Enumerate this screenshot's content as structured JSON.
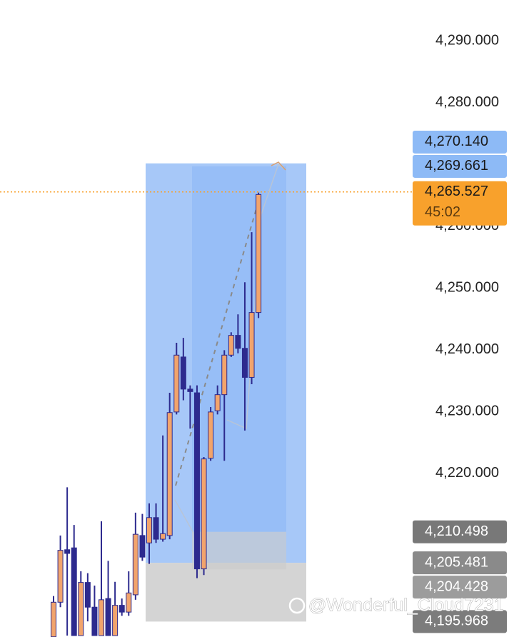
{
  "chart_data": {
    "type": "candlestick",
    "open": [
      4193.5,
      4199.1,
      4207.6,
      4207.9,
      4193.7,
      4202.3,
      4198.3,
      4193.7,
      4199.7,
      4193.7,
      4198.6,
      4197.5,
      4200.3,
      4209.9,
      4208.7,
      4212.8,
      4209.3,
      4209.9,
      4229.9,
      4238.8,
      4233.6,
      4233.0,
      4204.5,
      4222.4,
      4230.1,
      4232.7,
      4239.1,
      4242.3,
      4240.2,
      4235.5,
      4246.0
    ],
    "high": [
      4200.1,
      4209.9,
      4217.7,
      4211.6,
      4204.1,
      4203.8,
      4201.8,
      4212.2,
      4205.8,
      4202.4,
      4199.7,
      4204.1,
      4213.6,
      4213.4,
      4215.1,
      4215.1,
      4226.1,
      4233.0,
      4241.1,
      4241.9,
      4234.2,
      4234.2,
      4222.6,
      4230.7,
      4234.2,
      4239.9,
      4242.8,
      4245.7,
      4250.9,
      4259.0,
      4265.4
    ],
    "low": [
      4193.5,
      4198.3,
      4193.7,
      4193.7,
      4193.7,
      4196.0,
      4193.7,
      4193.7,
      4193.7,
      4193.7,
      4196.9,
      4196.9,
      4199.5,
      4205.8,
      4205.3,
      4208.7,
      4208.9,
      4209.3,
      4229.5,
      4231.8,
      4227.2,
      4203.0,
      4203.5,
      4222.0,
      4229.5,
      4222.0,
      4238.8,
      4239.4,
      4226.9,
      4234.4,
      4245.1
    ],
    "close": [
      4199.1,
      4207.5,
      4207.0,
      4193.7,
      4202.3,
      4198.3,
      4193.7,
      4199.5,
      4193.7,
      4198.6,
      4197.5,
      4200.6,
      4210.1,
      4206.4,
      4212.8,
      4209.3,
      4210.2,
      4229.8,
      4239.1,
      4233.6,
      4233.2,
      4204.5,
      4222.3,
      4229.9,
      4232.7,
      4239.1,
      4242.3,
      4240.2,
      4235.5,
      4246.0,
      4265.1
    ],
    "up_color": "#f2a46c",
    "down_color": "#2d2a8e",
    "ylim": [
      4193.47,
      4296.59
    ],
    "yticks": [
      {
        "value": 4290,
        "label": "4,290.000"
      },
      {
        "value": 4280,
        "label": "4,280.000"
      },
      {
        "value": 4260,
        "label": "4,260.000"
      },
      {
        "value": 4250,
        "label": "4,250.000"
      },
      {
        "value": 4240,
        "label": "4,240.000"
      },
      {
        "value": 4230,
        "label": "4,230.000"
      },
      {
        "value": 4220,
        "label": "4,220.000"
      }
    ],
    "price_labels": [
      {
        "value": 4270.14,
        "label": "4,270.140",
        "color": "#8dbaf6",
        "text_color": "#1a1a1a"
      },
      {
        "value": 4269.661,
        "label": "4,269.661",
        "color": "#8dbaf6",
        "text_color": "#1a1a1a"
      },
      {
        "value": 4265.527,
        "label": "4,265.527",
        "countdown": "45:02",
        "color": "#f8a12c",
        "text_color": "#1a1a1a"
      },
      {
        "value": 4210.498,
        "label": "4,210.498",
        "color": "#787878",
        "text_color": "#ffffff"
      },
      {
        "value": 4205.481,
        "label": "4,205.481",
        "color": "#8a8a8a",
        "text_color": "#ffffff"
      },
      {
        "value": 4204.428,
        "label": "4,204.428",
        "color": "#9c9c9c",
        "text_color": "#ffffff"
      },
      {
        "value": 4195.968,
        "label": "4,195.968",
        "color": "#7c7c7c",
        "text_color": "#ffffff"
      }
    ],
    "watermark": "@Wonderful_Cloud7231"
  }
}
